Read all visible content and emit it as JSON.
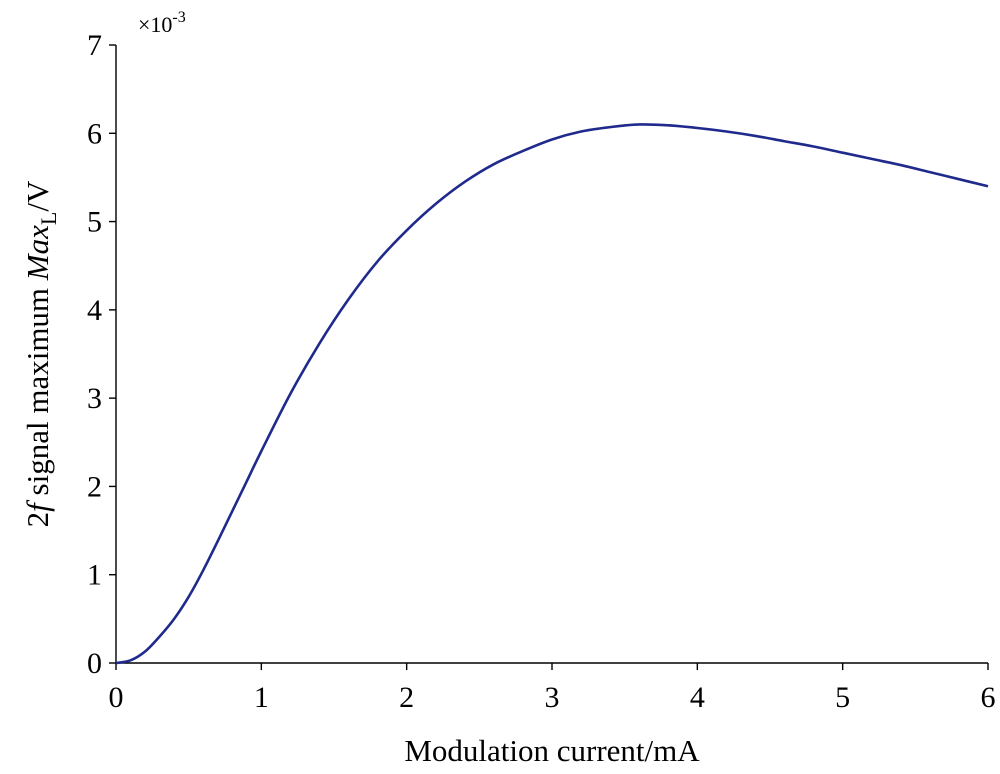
{
  "chart_data": {
    "type": "line",
    "xlabel": "Modulation current/mA",
    "ylabel": {
      "prefix": "2",
      "f": "f",
      "middle": " signal maximum ",
      "max": "Max",
      "subscript": "L",
      "suffix": "/V"
    },
    "y_scale_label": {
      "base": "×10",
      "exponent": "-3"
    },
    "xlim": [
      0,
      6
    ],
    "ylim": [
      0,
      7
    ],
    "x_ticks": [
      "0",
      "1",
      "2",
      "3",
      "4",
      "5",
      "6"
    ],
    "y_ticks": [
      "0",
      "1",
      "2",
      "3",
      "4",
      "5",
      "6",
      "7"
    ],
    "grid": false,
    "series": [
      {
        "color": "#1f2a8c",
        "x": [
          0,
          0.1,
          0.2,
          0.3,
          0.4,
          0.5,
          0.6,
          0.7,
          0.8,
          0.9,
          1.0,
          1.2,
          1.4,
          1.6,
          1.8,
          2.0,
          2.2,
          2.4,
          2.6,
          2.8,
          3.0,
          3.2,
          3.4,
          3.6,
          3.8,
          4.0,
          4.2,
          4.4,
          4.6,
          4.8,
          5.0,
          5.2,
          5.4,
          5.6,
          5.8,
          6.0
        ],
        "y": [
          0,
          0.03,
          0.13,
          0.3,
          0.5,
          0.75,
          1.05,
          1.38,
          1.72,
          2.06,
          2.4,
          3.05,
          3.62,
          4.12,
          4.55,
          4.9,
          5.2,
          5.45,
          5.65,
          5.8,
          5.93,
          6.02,
          6.07,
          6.1,
          6.09,
          6.06,
          6.02,
          5.97,
          5.91,
          5.85,
          5.78,
          5.71,
          5.64,
          5.56,
          5.48,
          5.4
        ]
      }
    ]
  }
}
